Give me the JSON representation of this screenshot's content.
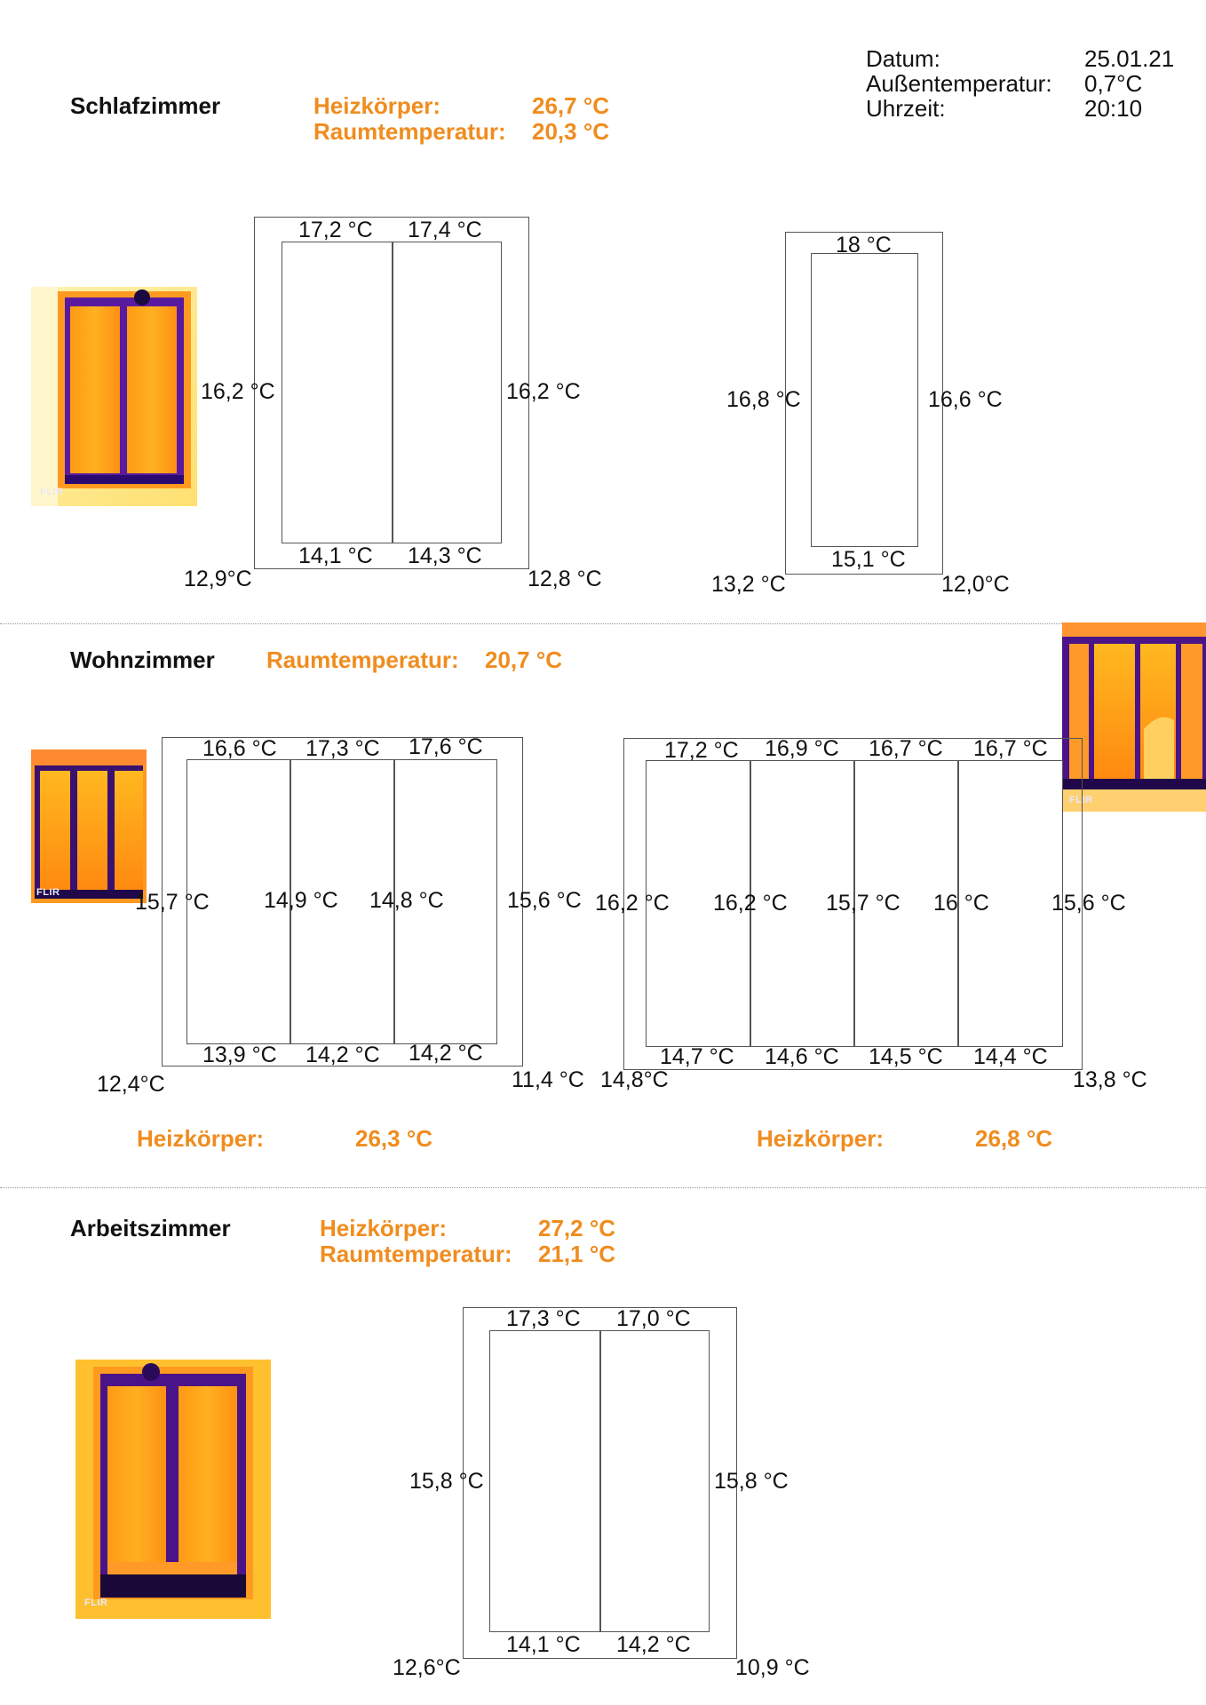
{
  "header": {
    "labels": {
      "date": "Datum:",
      "outdoor": "Außentemperatur:",
      "time": "Uhrzeit:"
    },
    "values": {
      "date": "25.01.21",
      "outdoor": "0,7°C",
      "time": "20:10"
    }
  },
  "accent_color": "#f08c1e",
  "flir_label": "FLIR",
  "schlafzimmer": {
    "title": "Schlafzimmer",
    "heater_label": "Heizkörper:",
    "heater_value": "26,7 °C",
    "room_label": "Raumtemperatur:",
    "room_value": "20,3 °C",
    "window1": {
      "top_left": "17,2 °C",
      "top_right": "17,4 °C",
      "left": "16,2 °C",
      "right": "16,2 °C",
      "bottom_left": "14,1 °C",
      "bottom_right": "14,3 °C",
      "corner_left": "12,9°C",
      "corner_right": "12,8 °C"
    },
    "window2": {
      "top": "18 °C",
      "left": "16,8 °C",
      "right": "16,6 °C",
      "bottom": "15,1 °C",
      "corner_left": "13,2 °C",
      "corner_right": "12,0°C"
    }
  },
  "wohnzimmer": {
    "title": "Wohnzimmer",
    "room_label": "Raumtemperatur:",
    "room_value": "20,7 °C",
    "window1": {
      "top": [
        "16,6 °C",
        "17,3 °C",
        "17,6 °C"
      ],
      "mid": [
        "15,7 °C",
        "14,9 °C",
        "14,8 °C",
        "15,6 °C"
      ],
      "bottom": [
        "13,9 °C",
        "14,2 °C",
        "14,2 °C"
      ],
      "corner_left": "12,4°C",
      "corner_right": "11,4 °C"
    },
    "window2": {
      "top": [
        "17,2 °C",
        "16,9 °C",
        "16,7 °C",
        "16,7 °C"
      ],
      "mid": [
        "16,2 °C",
        "16,2 °C",
        "15,7 °C",
        "16 °C",
        "15,6 °C"
      ],
      "bottom": [
        "14,7 °C",
        "14,6 °C",
        "14,5 °C",
        "14,4 °C"
      ],
      "corner_left": "14,8°C",
      "corner_right": "13,8 °C"
    },
    "heater1_label": "Heizkörper:",
    "heater1_value": "26,3 °C",
    "heater2_label": "Heizkörper:",
    "heater2_value": "26,8 °C"
  },
  "arbeitszimmer": {
    "title": "Arbeitszimmer",
    "heater_label": "Heizkörper:",
    "heater_value": "27,2 °C",
    "room_label": "Raumtemperatur:",
    "room_value": "21,1 °C",
    "window1": {
      "top_left": "17,3 °C",
      "top_right": "17,0 °C",
      "left": "15,8 °C",
      "right": "15,8 °C",
      "bottom_left": "14,1 °C",
      "bottom_right": "14,2 °C",
      "corner_left": "12,6°C",
      "corner_right": "10,9 °C"
    }
  }
}
